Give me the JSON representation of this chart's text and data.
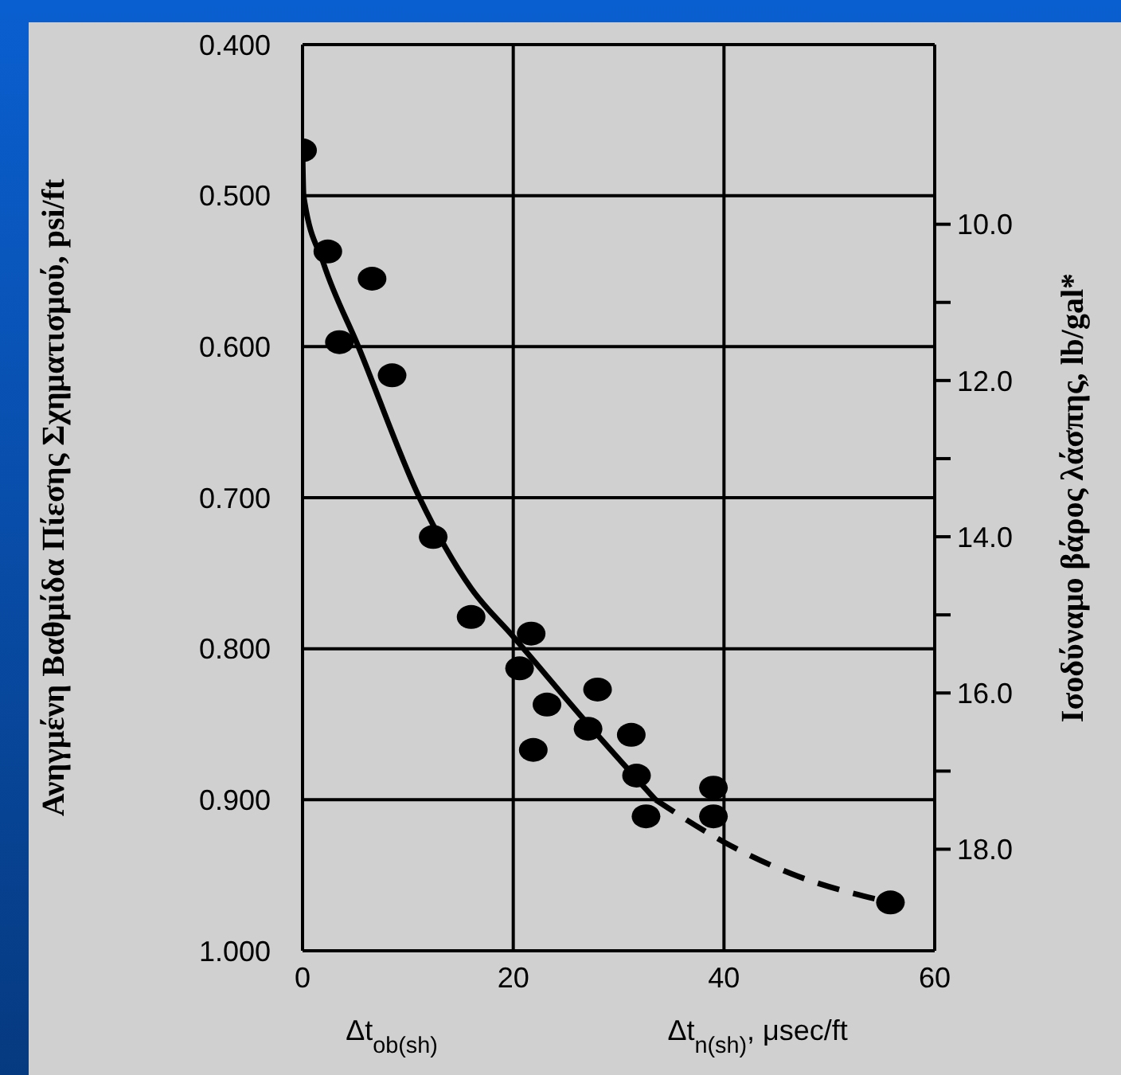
{
  "chart_data": {
    "type": "scatter",
    "ylabel": "Ανηγμένη Βαθμίδα Πίεσης Σχηματισμού, psi/ft",
    "y2label": "Ισοδύναμο βάρος λάσπης, lb/gal*",
    "xlabel": "Δt$_{n(sh)}$, μsec/ft",
    "annotations": [
      "Δt$_{ob(sh)}$"
    ],
    "xlim": [
      0,
      60
    ],
    "xticks": [
      0,
      20,
      40,
      60
    ],
    "ylim": [
      1.0,
      0.4
    ],
    "yticks": [
      {
        "value": 0.4,
        "label": "0.400"
      },
      {
        "value": 0.5,
        "label": "0.500"
      },
      {
        "value": 0.6,
        "label": "0.600"
      },
      {
        "value": 0.7,
        "label": "0.700"
      },
      {
        "value": 0.8,
        "label": "0.800"
      },
      {
        "value": 0.9,
        "label": "0.900"
      },
      {
        "value": 1.0,
        "label": "1.000"
      }
    ],
    "y2lim": [
      19.3,
      7.7
    ],
    "y2ticks": [
      {
        "value": 10,
        "label": "10.0"
      },
      {
        "value": 11,
        "label": null
      },
      {
        "value": 12,
        "label": "12.0"
      },
      {
        "value": 13,
        "label": null
      },
      {
        "value": 14,
        "label": "14.0"
      },
      {
        "value": 15,
        "label": null
      },
      {
        "value": 16,
        "label": "16.0"
      },
      {
        "value": 17,
        "label": null
      },
      {
        "value": 18,
        "label": "18.0"
      }
    ],
    "grid": true,
    "marker": "circle",
    "series": [
      {
        "color": "#000000",
        "x": [
          0,
          2.4,
          6.6,
          3.5,
          8.5,
          12.4,
          16.0,
          21.7,
          20.6,
          23.2,
          21.9,
          28.0,
          27.1,
          31.2,
          31.7,
          32.6,
          39.0,
          39.0,
          55.8
        ],
        "values": [
          0.47,
          0.537,
          0.555,
          0.597,
          0.619,
          0.726,
          0.779,
          0.79,
          0.813,
          0.837,
          0.867,
          0.827,
          0.853,
          0.857,
          0.884,
          0.911,
          0.892,
          0.911,
          0.968
        ]
      },
      {
        "type": "line",
        "marker": "none",
        "color": "#000000",
        "line_style": "solid",
        "x": [
          0,
          0.1,
          2,
          5.3,
          11.1,
          16,
          20,
          27.1,
          33.5
        ],
        "values": [
          0.47,
          0.5,
          0.545,
          0.6,
          0.7,
          0.76,
          0.792,
          0.85,
          0.9
        ]
      },
      {
        "type": "line",
        "marker": "none",
        "color": "#000000",
        "line_style": "dashed",
        "x": [
          33.5,
          40,
          46.4,
          55.8
        ],
        "values": [
          0.9,
          0.928,
          0.949,
          0.968
        ]
      }
    ]
  }
}
